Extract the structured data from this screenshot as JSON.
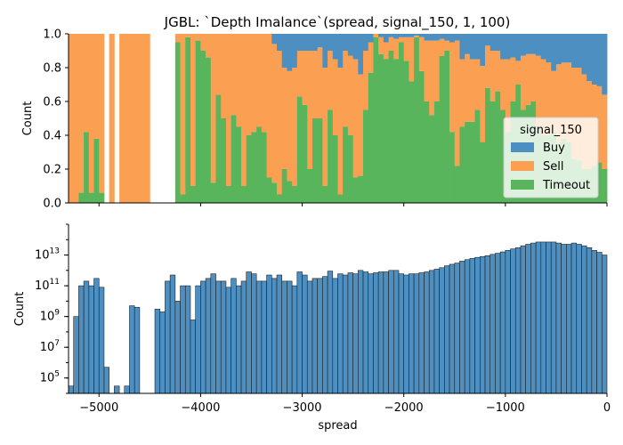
{
  "title": "JGBL: `Depth Imalance`(spread, signal_150, 1, 100)",
  "colors": {
    "Buy": "#4c8fc0",
    "Sell": "#fba052",
    "Timeout": "#59b55c",
    "hist": "#4c8fc0"
  },
  "chart_data": [
    {
      "type": "area",
      "subtype": "stacked-fill-histogram",
      "ylabel": "Count",
      "xlabel": "",
      "ylim": [
        0,
        1
      ],
      "xlim": [
        -5300,
        0
      ],
      "y_ticks": [
        0.0,
        0.2,
        0.4,
        0.6,
        0.8,
        1.0
      ],
      "y_tick_labels": [
        "0.0",
        "0.2",
        "0.4",
        "0.6",
        "0.8",
        "1.0"
      ],
      "x_ticks": [
        -5000,
        -4000,
        -3000,
        -2000,
        -1000,
        0
      ],
      "bin_start": -5300,
      "bin_width": 50,
      "legend": {
        "title": "signal_150",
        "placement": "right",
        "entries": [
          "Buy",
          "Sell",
          "Timeout"
        ]
      },
      "series": [
        {
          "name": "Timeout",
          "values": [
            0,
            0,
            0.06,
            0.42,
            0.06,
            0.38,
            0.06,
            0,
            0,
            0,
            0,
            0,
            0,
            0,
            0,
            0,
            0,
            0,
            0,
            0,
            0,
            0.95,
            0.05,
            0.98,
            0.1,
            0.96,
            0.9,
            0.86,
            0.12,
            0.64,
            0.5,
            0.1,
            0.52,
            0.45,
            0.1,
            0.4,
            0.42,
            0.45,
            0.42,
            0.15,
            0.12,
            0.05,
            0.2,
            0.13,
            0.1,
            0.63,
            0.58,
            0.2,
            0.5,
            0.5,
            0.1,
            0.55,
            0.4,
            0.05,
            0.45,
            0.4,
            0.15,
            0.16,
            0.55,
            0.77,
            0.98,
            0.88,
            0.85,
            0.9,
            0.85,
            0.95,
            0.84,
            0.72,
            0.98,
            0.78,
            0.6,
            0.52,
            0.6,
            0.87,
            0.9,
            0.42,
            0.22,
            0.45,
            0.48,
            0.48,
            0.55,
            0.36,
            0.68,
            0.6,
            0.66,
            0.55,
            0.42,
            0.6,
            0.7,
            0.55,
            0.58,
            0.6,
            0.45,
            0.4,
            0.4,
            0.42,
            0.35,
            0.38,
            0.36,
            0.26,
            0.25,
            0.2,
            0.2,
            0.22,
            0.24,
            0.2
          ]
        },
        {
          "name": "Sell",
          "values": [
            1,
            1,
            0.94,
            0.58,
            0.94,
            0.62,
            0.94,
            0,
            1,
            0,
            1,
            1,
            1,
            1,
            1,
            1,
            0,
            0,
            0,
            0,
            0,
            0.05,
            0.95,
            0.02,
            0.9,
            0.04,
            0.1,
            0.14,
            0.88,
            0.36,
            0.5,
            0.9,
            0.48,
            0.55,
            0.9,
            0.6,
            0.58,
            0.55,
            0.58,
            0.85,
            0.82,
            0.85,
            0.6,
            0.65,
            0.7,
            0.27,
            0.32,
            0.7,
            0.4,
            0.42,
            0.7,
            0.35,
            0.45,
            0.75,
            0.45,
            0.47,
            0.7,
            0.6,
            0.35,
            0.18,
            0.02,
            0.1,
            0.1,
            0.08,
            0.12,
            0.03,
            0.14,
            0.26,
            0.01,
            0.2,
            0.36,
            0.44,
            0.36,
            0.1,
            0.06,
            0.53,
            0.74,
            0.4,
            0.4,
            0.37,
            0.3,
            0.45,
            0.25,
            0.3,
            0.24,
            0.3,
            0.43,
            0.26,
            0.14,
            0.32,
            0.3,
            0.28,
            0.42,
            0.45,
            0.43,
            0.36,
            0.47,
            0.45,
            0.47,
            0.54,
            0.55,
            0.56,
            0.52,
            0.48,
            0.45,
            0.44
          ]
        }
      ]
    },
    {
      "type": "bar",
      "subtype": "histogram",
      "xlabel": "spread",
      "ylabel": "Count",
      "y_scale": "log",
      "ylim": [
        10000.0,
        1000000000000000.0
      ],
      "xlim": [
        -5300,
        0
      ],
      "y_tick_labels": [
        "10^5",
        "10^7",
        "10^9",
        "10^11",
        "10^13"
      ],
      "x_ticks": [
        -5000,
        -4000,
        -3000,
        -2000,
        -1000,
        0
      ],
      "x_tick_labels": [
        "−5000",
        "−4000",
        "−3000",
        "−2000",
        "−1000",
        "0"
      ],
      "bin_start": -5300,
      "bin_width": 50,
      "values": [
        30000,
        1000000000.0,
        100000000000.0,
        200000000000.0,
        100000000000.0,
        300000000000.0,
        80000000000.0,
        500000.0,
        0,
        30000,
        0,
        30000,
        5000000000.0,
        4000000000.0,
        0,
        10000,
        0,
        3000000000.0,
        2000000000.0,
        200000000000.0,
        500000000000.0,
        10000000000.0,
        100000000000.0,
        100000000000.0,
        600000000.0,
        100000000000.0,
        200000000000.0,
        300000000000.0,
        600000000000.0,
        200000000000.0,
        200000000000.0,
        80000000000.0,
        300000000000.0,
        100000000000.0,
        200000000000.0,
        800000000000.0,
        600000000000.0,
        200000000000.0,
        200000000000.0,
        500000000000.0,
        300000000000.0,
        500000000000.0,
        200000000000.0,
        200000000000.0,
        100000000000.0,
        800000000000.0,
        500000000000.0,
        200000000000.0,
        300000000000.0,
        300000000000.0,
        400000000000.0,
        900000000000.0,
        300000000000.0,
        600000000000.0,
        500000000000.0,
        700000000000.0,
        600000000000.0,
        1000000000000.0,
        800000000000.0,
        600000000000.0,
        700000000000.0,
        800000000000.0,
        800000000000.0,
        1000000000000.0,
        1000000000000.0,
        600000000000.0,
        500000000000.0,
        600000000000.0,
        600000000000.0,
        700000000000.0,
        800000000000.0,
        1000000000000.0,
        1200000000000.0,
        1500000000000.0,
        2000000000000.0,
        2500000000000.0,
        3000000000000.0,
        4000000000000.0,
        5000000000000.0,
        6000000000000.0,
        7000000000000.0,
        8000000000000.0,
        9000000000000.0,
        11000000000000.0,
        13000000000000.0,
        16000000000000.0,
        20000000000000.0,
        25000000000000.0,
        30000000000000.0,
        40000000000000.0,
        50000000000000.0,
        60000000000000.0,
        70000000000000.0,
        70000000000000.0,
        70000000000000.0,
        70000000000000.0,
        60000000000000.0,
        50000000000000.0,
        50000000000000.0,
        60000000000000.0,
        50000000000000.0,
        40000000000000.0,
        30000000000000.0,
        20000000000000.0,
        15000000000000.0,
        10000000000000.0
      ]
    }
  ]
}
